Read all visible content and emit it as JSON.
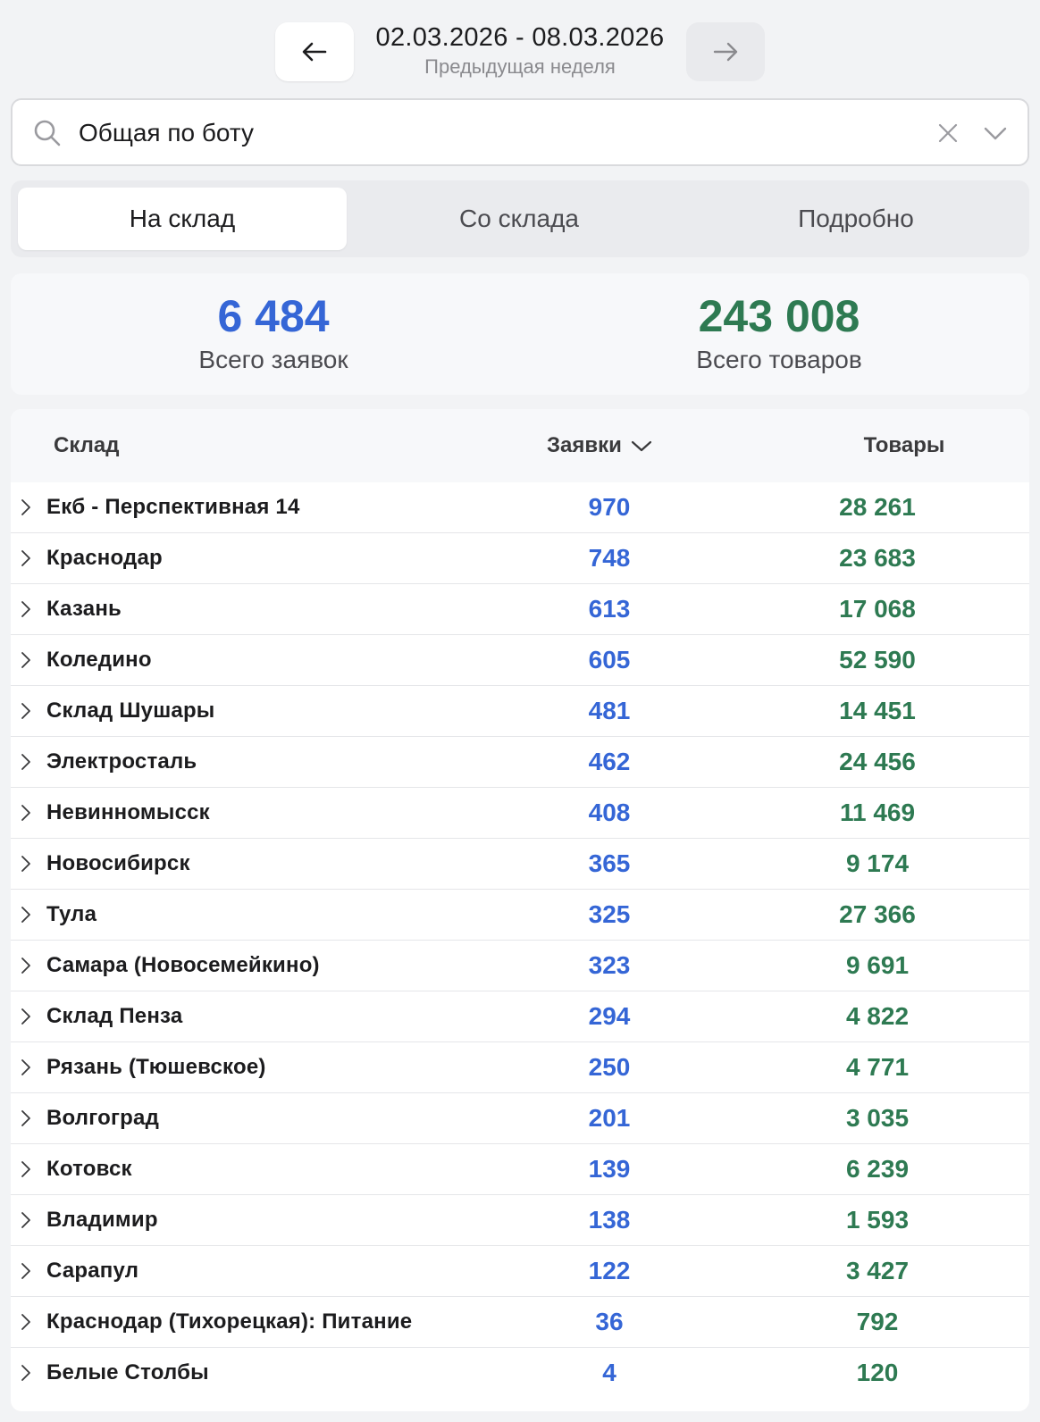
{
  "period": {
    "range": "02.03.2026 - 08.03.2026",
    "label": "Предыдущая неделя"
  },
  "icons": {
    "prev": "arrow-left-icon",
    "next": "arrow-right-icon",
    "search": "search-icon",
    "clear": "close-icon",
    "dropdown": "chevron-down-icon",
    "row_expand": "chevron-right-icon",
    "sort": "chevron-down-icon"
  },
  "search": {
    "value": "Общая по боту"
  },
  "tabs": [
    {
      "label": "На склад",
      "active": true
    },
    {
      "label": "Со склада",
      "active": false
    },
    {
      "label": "Подробно",
      "active": false
    }
  ],
  "summary": {
    "requests": {
      "value": "6 484",
      "label": "Всего заявок"
    },
    "goods": {
      "value": "243 008",
      "label": "Всего товаров"
    }
  },
  "table": {
    "headers": {
      "warehouse": "Склад",
      "requests": "Заявки",
      "goods": "Товары"
    },
    "rows": [
      {
        "name": "Екб - Перспективная 14",
        "requests": "970",
        "goods": "28 261"
      },
      {
        "name": "Краснодар",
        "requests": "748",
        "goods": "23 683"
      },
      {
        "name": "Казань",
        "requests": "613",
        "goods": "17 068"
      },
      {
        "name": "Коледино",
        "requests": "605",
        "goods": "52 590"
      },
      {
        "name": "Склад Шушары",
        "requests": "481",
        "goods": "14 451"
      },
      {
        "name": "Электросталь",
        "requests": "462",
        "goods": "24 456"
      },
      {
        "name": "Невинномысск",
        "requests": "408",
        "goods": "11 469"
      },
      {
        "name": "Новосибирск",
        "requests": "365",
        "goods": "9 174"
      },
      {
        "name": "Тула",
        "requests": "325",
        "goods": "27 366"
      },
      {
        "name": "Самара (Новосемейкино)",
        "requests": "323",
        "goods": "9 691"
      },
      {
        "name": "Склад Пенза",
        "requests": "294",
        "goods": "4 822"
      },
      {
        "name": "Рязань (Тюшевское)",
        "requests": "250",
        "goods": "4 771"
      },
      {
        "name": "Волгоград",
        "requests": "201",
        "goods": "3 035"
      },
      {
        "name": "Котовск",
        "requests": "139",
        "goods": "6 239"
      },
      {
        "name": "Владимир",
        "requests": "138",
        "goods": "1 593"
      },
      {
        "name": "Сарапул",
        "requests": "122",
        "goods": "3 427"
      },
      {
        "name": "Краснодар (Тихорецкая): Питание",
        "requests": "36",
        "goods": "792"
      },
      {
        "name": "Белые Столбы",
        "requests": "4",
        "goods": "120"
      }
    ]
  },
  "colors": {
    "requests": "#3566d6",
    "goods": "#2e7a52"
  }
}
